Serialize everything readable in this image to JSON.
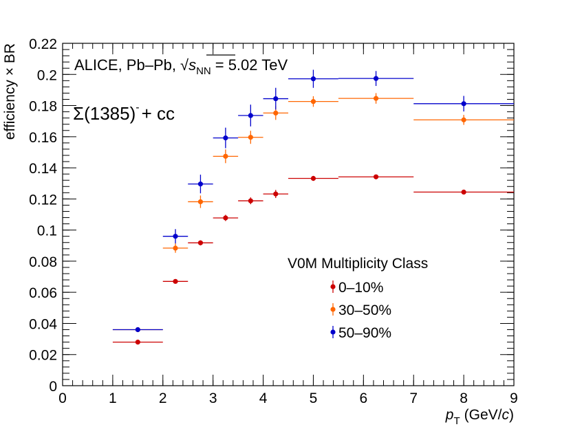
{
  "chart_data": {
    "type": "scatter",
    "experiment_label": "ALICE, Pb–Pb,",
    "energy_sqrt": "√",
    "energy_symbol": "s",
    "energy_subscript": "NN",
    "energy_value": "= 5.02 TeV",
    "particle_label": "Σ(1385)",
    "particle_superscript": "-",
    "particle_suffix": "+ cc",
    "ylabel": "efficiency × BR",
    "xlabel_symbol": "p",
    "xlabel_subscript": "T",
    "xlabel_unit_prefix": "(GeV/",
    "xlabel_unit_c": "c",
    "xlabel_unit_suffix": ")",
    "xlim": [
      0,
      9
    ],
    "ylim": [
      0,
      0.22
    ],
    "x_ticks": [
      0,
      1,
      2,
      3,
      4,
      5,
      6,
      7,
      8,
      9
    ],
    "x_tick_labels": [
      "0",
      "1",
      "2",
      "3",
      "4",
      "5",
      "6",
      "7",
      "8",
      "9"
    ],
    "y_ticks": [
      0,
      0.02,
      0.04,
      0.06,
      0.08,
      0.1,
      0.12,
      0.14,
      0.16,
      0.18,
      0.2,
      0.22
    ],
    "y_tick_labels": [
      "0",
      "0.02",
      "0.04",
      "0.06",
      "0.08",
      "0.1",
      "0.12",
      "0.14",
      "0.16",
      "0.18",
      "0.2",
      "0.22"
    ],
    "grid": false,
    "legend_title": "V0M Multiplicity Class",
    "legend_position": "bottom-right",
    "bin_low": [
      1,
      2,
      2.5,
      3,
      3.5,
      4,
      4.5,
      5.5,
      7
    ],
    "bin_high": [
      2,
      2.5,
      3,
      3.5,
      4,
      4.5,
      5.5,
      7,
      9
    ],
    "x": [
      1.5,
      2.25,
      2.75,
      3.25,
      3.75,
      4.25,
      5,
      6.25,
      8
    ],
    "series": [
      {
        "name": "0–10%",
        "color": "#cc0000",
        "values": [
          0.028,
          0.067,
          0.0918,
          0.1078,
          0.1188,
          0.1232,
          0.1332,
          0.1342,
          0.1244
        ],
        "errors": [
          0.0008,
          0.0012,
          0.0016,
          0.002,
          0.0022,
          0.0026,
          0.0016,
          0.0012,
          0.0012
        ]
      },
      {
        "name": "30–50%",
        "color": "#ff6600",
        "values": [
          0.036,
          0.0884,
          0.1182,
          0.1474,
          0.1596,
          0.1752,
          0.1826,
          0.1846,
          0.1708
        ],
        "errors": [
          0.001,
          0.003,
          0.004,
          0.0044,
          0.0042,
          0.0044,
          0.0034,
          0.0034,
          0.0032
        ]
      },
      {
        "name": "50–90%",
        "color": "#0000cc",
        "values": [
          0.036,
          0.096,
          0.1296,
          0.1592,
          0.1736,
          0.1844,
          0.1972,
          0.1974,
          0.1812
        ],
        "errors": [
          0.0012,
          0.0046,
          0.006,
          0.0066,
          0.007,
          0.007,
          0.0058,
          0.0048,
          0.005
        ]
      }
    ]
  }
}
